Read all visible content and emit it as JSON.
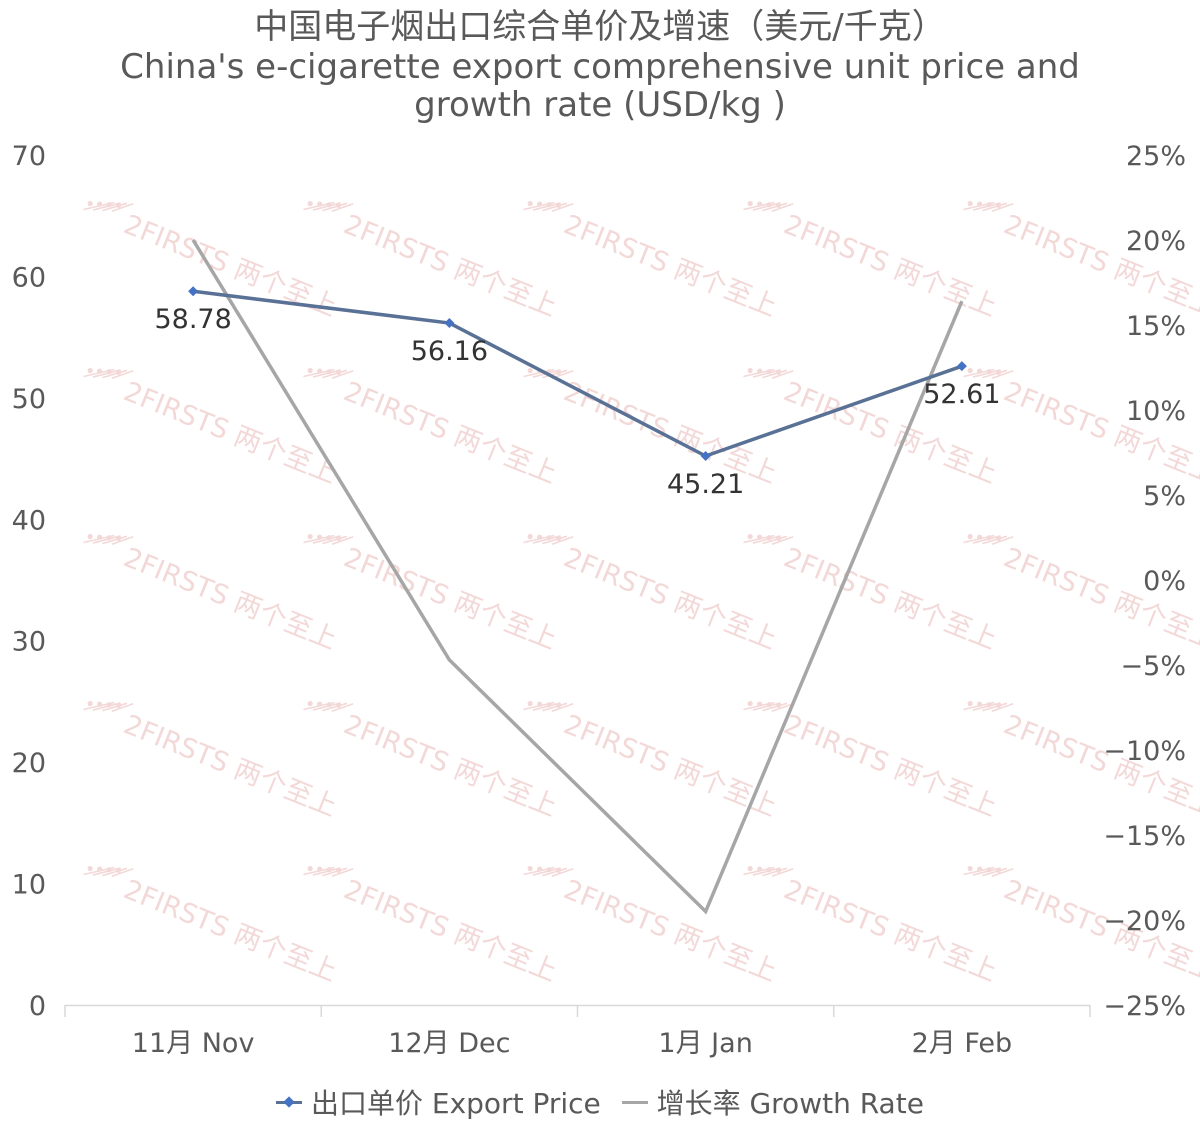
{
  "chart_data": {
    "type": "line",
    "title": "中国电子烟出口综合单价及增速（美元/千克）",
    "subtitle_line1": "China's e-cigarette export comprehensive unit price and",
    "subtitle_line2": "growth rate (USD/kg )",
    "categories": [
      "11月 Nov",
      "12月 Dec",
      "1月 Jan",
      "2月 Feb"
    ],
    "series": [
      {
        "name": "出口单价 Export Price",
        "axis": "left",
        "values": [
          58.78,
          56.16,
          45.21,
          52.61
        ],
        "data_labels": [
          "58.78",
          "56.16",
          "45.21",
          "52.61"
        ],
        "color": "#5A7196",
        "marker_color": "#4472C4"
      },
      {
        "name": "增长率 Growth Rate",
        "axis": "right",
        "values": [
          0.2,
          -0.047,
          -0.195,
          0.164
        ],
        "color": "#A6A6A6"
      }
    ],
    "y_left": {
      "min": 0,
      "max": 70,
      "ticks": [
        "0",
        "10",
        "20",
        "30",
        "40",
        "50",
        "60",
        "70"
      ]
    },
    "y_right": {
      "min": -0.25,
      "max": 0.25,
      "ticks": [
        "−25%",
        "−20%",
        "−15%",
        "−10%",
        "−5%",
        "0%",
        "5%",
        "10%",
        "15%",
        "20%",
        "25%"
      ]
    },
    "grid": false,
    "legend_position": "bottom",
    "watermark_text": "2FIRSTS 两个至上"
  }
}
